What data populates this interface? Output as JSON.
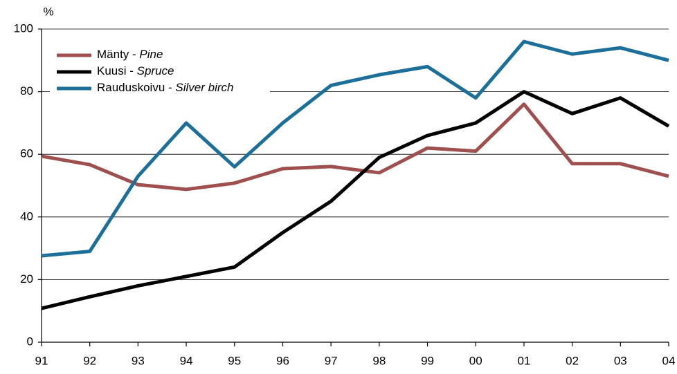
{
  "chart_data": {
    "type": "line",
    "y_axis_label": "%",
    "categories": [
      "91",
      "92",
      "93",
      "94",
      "95",
      "96",
      "97",
      "98",
      "99",
      "00",
      "01",
      "02",
      "03",
      "04"
    ],
    "series": [
      {
        "name": "Mänty - Pine",
        "color": "#9e4f4e",
        "values": [
          59.4,
          56.7,
          50.3,
          48.8,
          50.8,
          55.4,
          56.1,
          54.1,
          62,
          61,
          76,
          57,
          57,
          53
        ]
      },
      {
        "name": "Kuusi - Spruce",
        "color": "#000000",
        "values": [
          10.8,
          14.5,
          18,
          21,
          24,
          35,
          45,
          59,
          66,
          70,
          80,
          73,
          78,
          69
        ]
      },
      {
        "name": "Rauduskoivu - Silver birch",
        "color": "#1b6f99",
        "values": [
          27.6,
          29,
          53,
          70,
          56,
          70,
          82,
          85.4,
          88,
          78,
          96,
          92,
          94,
          90
        ]
      }
    ],
    "ylim": [
      0,
      100
    ],
    "yticks": [
      0,
      20,
      40,
      60,
      80,
      100
    ],
    "grid": true,
    "legend": "upper left"
  }
}
